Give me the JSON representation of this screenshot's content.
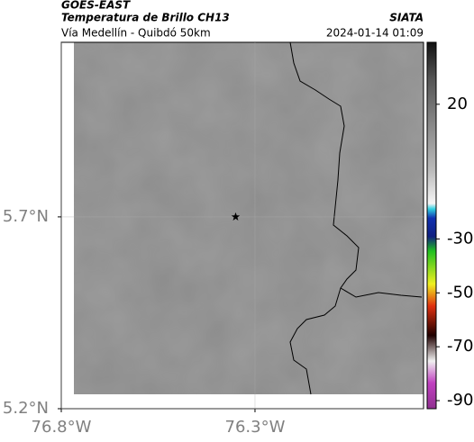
{
  "chart_data": {
    "type": "map",
    "title": "GOES-EAST",
    "subtitle": "Temperatura de Brillo CH13",
    "source": "SIATA",
    "caption": "Vía Medellín - Quibdó 50km",
    "timestamp": "2024-01-14 01:09",
    "xlim": [
      -76.8,
      -75.865
    ],
    "ylim": [
      5.2,
      6.155
    ],
    "xticks": [
      {
        "value": -76.8,
        "label": "76.8°W"
      },
      {
        "value": -76.3,
        "label": "76.3°W"
      }
    ],
    "yticks": [
      {
        "value": 5.2,
        "label": "5.2°N"
      },
      {
        "value": 5.7,
        "label": "5.7°N"
      }
    ],
    "grid": true,
    "marker": {
      "lon": -76.35,
      "lat": 5.7
    },
    "colorbar": {
      "clim": [
        -93,
        43
      ],
      "ticks": [
        20,
        -30,
        -50,
        -70,
        -90
      ]
    }
  }
}
